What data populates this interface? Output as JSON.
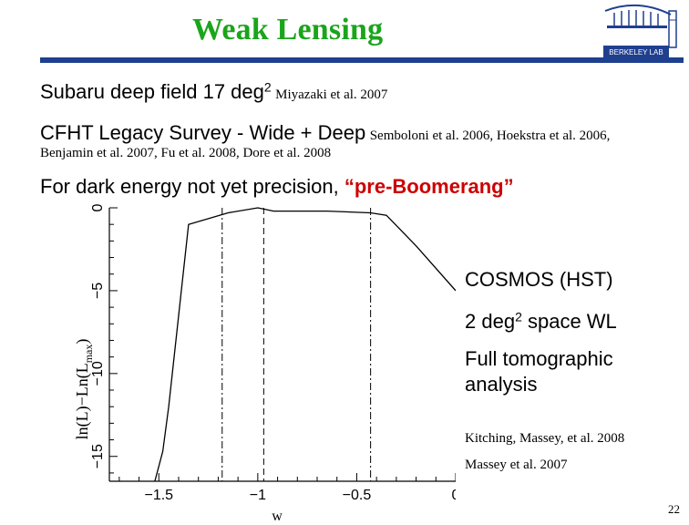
{
  "slide": {
    "title": "Weak Lensing",
    "line1_main": "Subaru deep field 17 deg",
    "line1_sup": "2",
    "line1_ref": "Miyazaki et al. 2007",
    "line2_main": "CFHT Legacy Survey - Wide + Deep",
    "line2_ref": "Semboloni et al. 2006, Hoekstra et al. 2006,",
    "line3_ref": "Benjamin et al. 2007, Fu et al. 2008, Dore et al. 2008",
    "line4_pre": "For dark energy not yet precision, ",
    "line4_quote": "“pre-Boomerang”",
    "caption1": "COSMOS (HST)",
    "caption2_main": "2 deg",
    "caption2_sup": "2",
    "caption2_rest": " space WL",
    "caption3a": "Full tomographic",
    "caption3b": "analysis",
    "ref1": "Kitching, Massey, et al. 2008",
    "ref2": "Massey et al. 2007",
    "page_number": "22",
    "logo": "berkeley-lab-logo",
    "logo_text": "BERKELEY LAB"
  },
  "chart_data": {
    "type": "line",
    "xlabel": "w",
    "ylabel": "ln(L)−Ln(L",
    "ylabel_sub": "max",
    "ylabel_end": ")",
    "xlim": [
      -1.75,
      0.0
    ],
    "ylim": [
      -16.5,
      0.0
    ],
    "x_ticks": [
      "−1.5",
      "−1",
      "−0.5",
      "0"
    ],
    "x_tick_values": [
      -1.5,
      -1.0,
      -0.5,
      0.0
    ],
    "y_ticks": [
      "0",
      "−5",
      "−10",
      "−15"
    ],
    "y_tick_values": [
      0,
      -5,
      -10,
      -15
    ],
    "series": [
      {
        "x": [
          -1.52,
          -1.48,
          -1.45,
          -1.35,
          -1.15,
          -1.0,
          -0.92,
          -0.76,
          -0.65,
          -0.43,
          -0.35,
          -0.2,
          0.0
        ],
        "y": [
          -16.5,
          -14.7,
          -12.0,
          -1.0,
          -0.3,
          0.0,
          -0.2,
          -0.2,
          -0.2,
          -0.3,
          -0.45,
          -2.3,
          -5.0
        ]
      }
    ],
    "vlines_dashdot": [
      -1.18,
      -0.43
    ],
    "vlines_dashed": [
      -0.97
    ]
  }
}
